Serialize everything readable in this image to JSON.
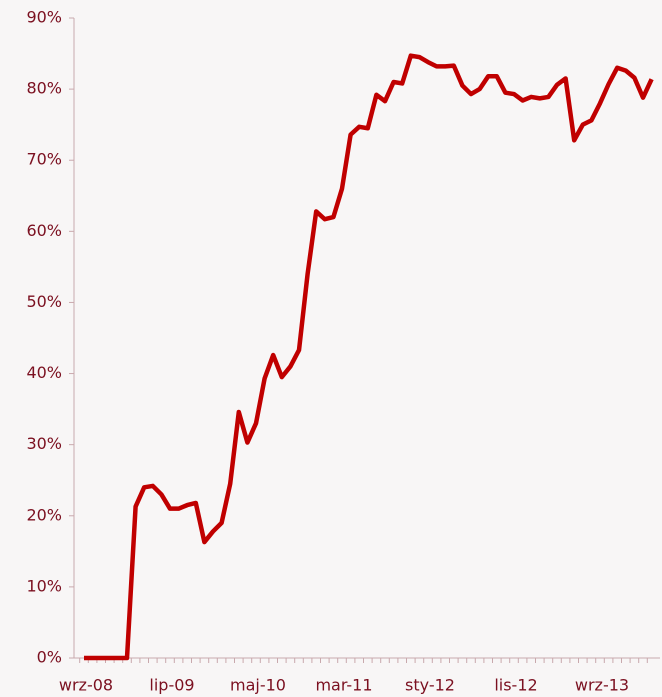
{
  "chart_data": {
    "type": "line",
    "categories": [
      "wrz-08",
      null,
      null,
      null,
      null,
      null,
      null,
      null,
      null,
      null,
      "lip-09",
      null,
      null,
      null,
      null,
      null,
      null,
      null,
      null,
      null,
      "maj-10",
      null,
      null,
      null,
      null,
      null,
      null,
      null,
      null,
      null,
      "mar-11",
      null,
      null,
      null,
      null,
      null,
      null,
      null,
      null,
      null,
      "sty-12",
      null,
      null,
      null,
      null,
      null,
      null,
      null,
      null,
      null,
      "lis-12",
      null,
      null,
      null,
      null,
      null,
      null,
      null,
      null,
      null,
      "wrz-13",
      null,
      null,
      null,
      null,
      null,
      null
    ],
    "series": [
      {
        "color": "#c00000",
        "values": [
          0,
          0,
          0,
          0,
          0,
          0,
          21.3,
          24,
          24.2,
          23,
          21,
          21,
          21.5,
          21.8,
          16.3,
          17.8,
          19,
          24.5,
          34.6,
          30.3,
          33,
          39.3,
          42.6,
          39.5,
          41,
          43.3,
          54,
          62.8,
          61.7,
          62,
          66,
          73.6,
          74.7,
          74.5,
          79.2,
          78.3,
          81,
          80.8,
          84.7,
          84.5,
          83.8,
          83.2,
          83.2,
          83.3,
          80.5,
          79.3,
          80,
          81.8,
          81.8,
          79.5,
          79.3,
          78.4,
          78.9,
          78.7,
          78.9,
          80.6,
          81.5,
          72.8,
          75,
          75.6,
          78,
          80.7,
          83,
          82.6,
          81.6,
          78.8,
          81.4
        ]
      }
    ],
    "ylim": [
      0,
      90
    ],
    "yticks": [
      {
        "value": 0,
        "label": "0%"
      },
      {
        "value": 10,
        "label": "10%"
      },
      {
        "value": 20,
        "label": "20%"
      },
      {
        "value": 30,
        "label": "30%"
      },
      {
        "value": 40,
        "label": "40%"
      },
      {
        "value": 50,
        "label": "50%"
      },
      {
        "value": 60,
        "label": "60%"
      },
      {
        "value": 70,
        "label": "70%"
      },
      {
        "value": 80,
        "label": "80%"
      },
      {
        "value": 90,
        "label": "90%"
      }
    ],
    "grid": false
  }
}
